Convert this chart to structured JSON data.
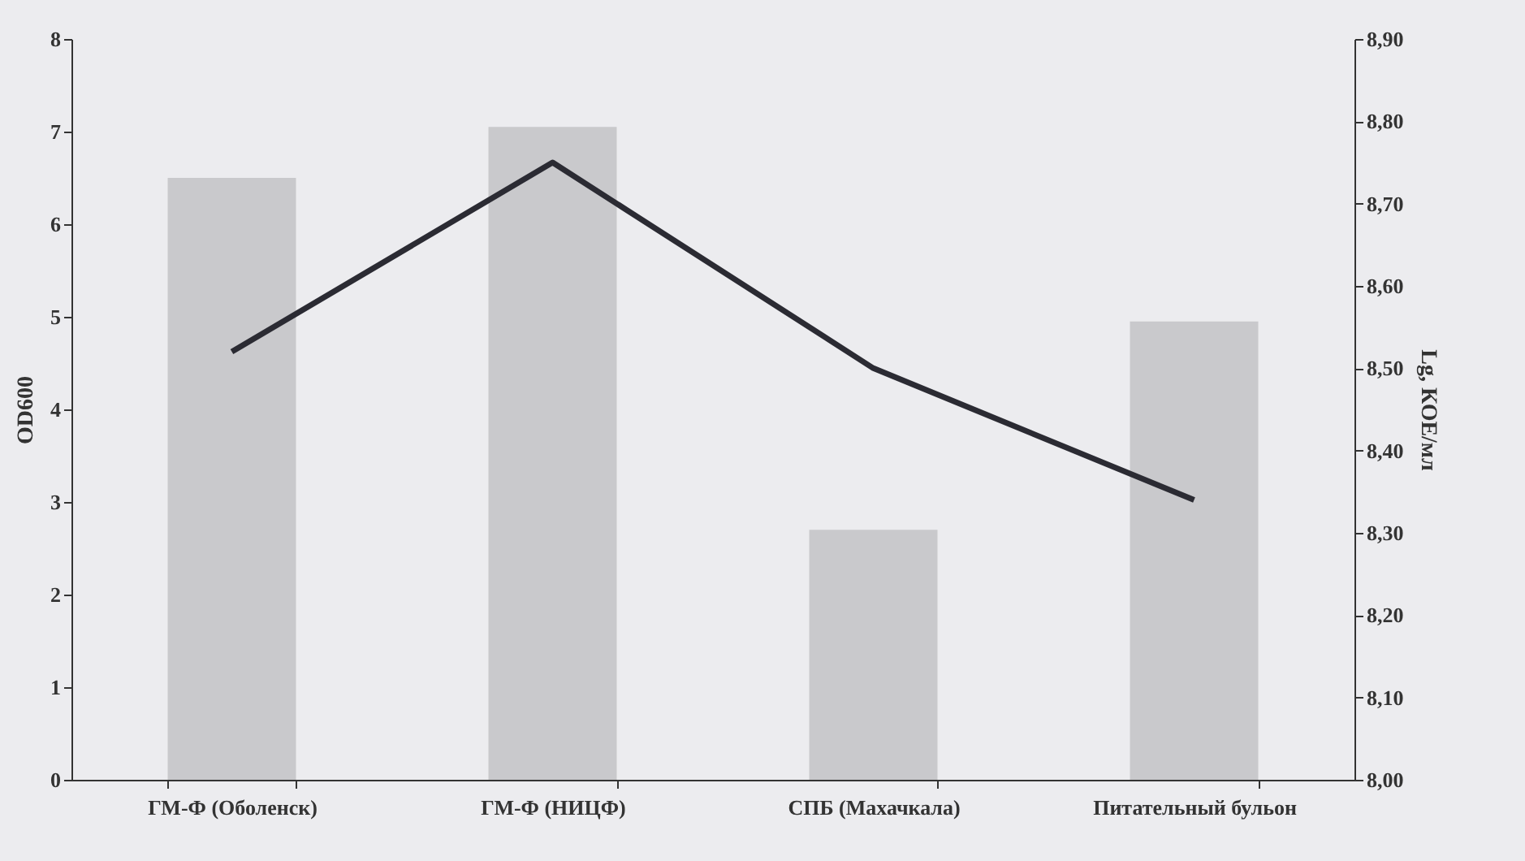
{
  "chart_data": {
    "type": "bar",
    "xlabel": null,
    "ylabel": "OD600",
    "y2label": "Lg, КОЕ/мл",
    "categories": [
      "ГМ-Ф (Оболенск)",
      "ГМ-Ф (НИЦФ)",
      "СПБ (Махачкала)",
      "Питательный бульон"
    ],
    "series": [
      {
        "color": "#c9c9cc",
        "values": [
          6.5,
          7.05,
          2.7,
          4.95
        ]
      },
      {
        "type": "line",
        "axis": "y2",
        "color": "#2b2b33",
        "values": [
          8.52,
          8.75,
          8.5,
          8.34
        ]
      }
    ],
    "ylim": [
      0,
      8
    ],
    "yticks": [
      0,
      1,
      2,
      3,
      4,
      5,
      6,
      7,
      8
    ],
    "y2lim": [
      8,
      8.9
    ],
    "y2ticks": [
      {
        "value": 8,
        "label": "8,00"
      },
      {
        "value": 8.1,
        "label": "8,10"
      },
      {
        "value": 8.2,
        "label": "8,20"
      },
      {
        "value": 8.3,
        "label": "8,30"
      },
      {
        "value": 8.4,
        "label": "8,40"
      },
      {
        "value": 8.5,
        "label": "8,50"
      },
      {
        "value": 8.6,
        "label": "8,60"
      },
      {
        "value": 8.7,
        "label": "8,70"
      },
      {
        "value": 8.8,
        "label": "8,80"
      },
      {
        "value": 8.9,
        "label": "8,90"
      }
    ]
  }
}
